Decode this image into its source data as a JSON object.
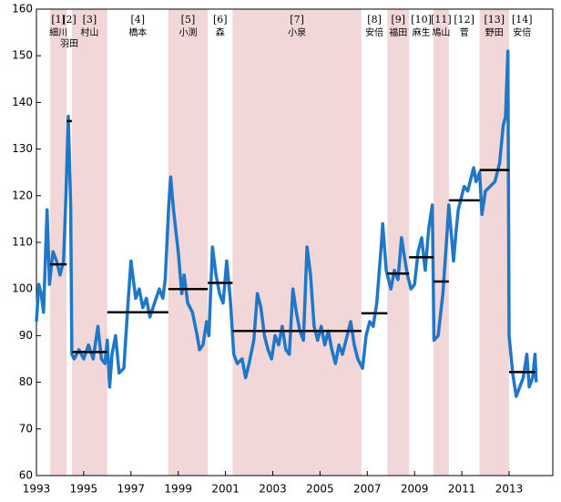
{
  "chart_data": {
    "type": "line",
    "xlim": [
      1993,
      2014.85
    ],
    "ylim": [
      60,
      160
    ],
    "xticks": [
      1993,
      1995,
      1997,
      1999,
      2001,
      2003,
      2005,
      2007,
      2009,
      2011,
      2013
    ],
    "yticks": [
      60,
      70,
      80,
      90,
      100,
      110,
      120,
      130,
      140,
      150,
      160
    ],
    "color": "#1f77c8",
    "shade_color": "#f2d7d9",
    "avg_color": "#000000",
    "periods": [
      {
        "label": "[1]",
        "name": "細川",
        "start": 1993.58,
        "end": 1994.28,
        "avg": 105.3,
        "shaded": true
      },
      {
        "label": "[2]",
        "name": "羽田",
        "start": 1994.28,
        "end": 1994.5,
        "avg": 136,
        "shaded": false
      },
      {
        "label": "[3]",
        "name": "村山",
        "start": 1994.5,
        "end": 1996.0,
        "avg": 86.5,
        "shaded": true
      },
      {
        "label": "[4]",
        "name": "橋本",
        "start": 1996.0,
        "end": 1998.58,
        "avg": 95,
        "shaded": false
      },
      {
        "label": "[5]",
        "name": "小渕",
        "start": 1998.58,
        "end": 2000.25,
        "avg": 100,
        "shaded": true
      },
      {
        "label": "[6]",
        "name": "森",
        "start": 2000.25,
        "end": 2001.3,
        "avg": 101.3,
        "shaded": false
      },
      {
        "label": "[7]",
        "name": "小泉",
        "start": 2001.3,
        "end": 2006.75,
        "avg": 91,
        "shaded": true
      },
      {
        "label": "[8]",
        "name": "安倍",
        "start": 2006.75,
        "end": 2007.85,
        "avg": 94.8,
        "shaded": false
      },
      {
        "label": "[9]",
        "name": "福田",
        "start": 2007.85,
        "end": 2008.77,
        "avg": 103.3,
        "shaded": true
      },
      {
        "label": "[10]",
        "name": "麻生",
        "start": 2008.77,
        "end": 2009.8,
        "avg": 106.8,
        "shaded": false
      },
      {
        "label": "[11]",
        "name": "鳩山",
        "start": 2009.8,
        "end": 2010.45,
        "avg": 101.6,
        "shaded": true
      },
      {
        "label": "[12]",
        "name": "菅",
        "start": 2010.45,
        "end": 2011.75,
        "avg": 119,
        "shaded": false
      },
      {
        "label": "[13]",
        "name": "野田",
        "start": 2011.75,
        "end": 2013.0,
        "avg": 125.5,
        "shaded": true
      },
      {
        "label": "[14]",
        "name": "安倍",
        "start": 2013.0,
        "end": 2014.1,
        "avg": 82.2,
        "shaded": false
      }
    ],
    "x": [
      1993.0,
      1993.1,
      1993.2,
      1993.3,
      1993.45,
      1993.55,
      1993.7,
      1993.85,
      1994.0,
      1994.15,
      1994.25,
      1994.35,
      1994.45,
      1994.5,
      1994.6,
      1994.8,
      1995.0,
      1995.2,
      1995.4,
      1995.6,
      1995.75,
      1995.9,
      1996.0,
      1996.1,
      1996.2,
      1996.35,
      1996.5,
      1996.7,
      1996.85,
      1997.0,
      1997.2,
      1997.35,
      1997.5,
      1997.65,
      1997.8,
      1998.0,
      1998.2,
      1998.35,
      1998.45,
      1998.6,
      1998.68,
      1998.8,
      1999.0,
      1999.15,
      1999.25,
      1999.4,
      1999.6,
      1999.8,
      1999.9,
      2000.05,
      2000.2,
      2000.3,
      2000.45,
      2000.6,
      2000.75,
      2000.9,
      2001.05,
      2001.2,
      2001.35,
      2001.5,
      2001.7,
      2001.85,
      2002.0,
      2002.2,
      2002.35,
      2002.5,
      2002.65,
      2002.8,
      2002.95,
      2003.1,
      2003.25,
      2003.4,
      2003.55,
      2003.7,
      2003.85,
      2004.0,
      2004.15,
      2004.3,
      2004.45,
      2004.6,
      2004.75,
      2004.9,
      2005.05,
      2005.2,
      2005.35,
      2005.5,
      2005.65,
      2005.8,
      2005.95,
      2006.15,
      2006.3,
      2006.45,
      2006.6,
      2006.8,
      2006.95,
      2007.1,
      2007.25,
      2007.4,
      2007.6,
      2007.65,
      2007.8,
      2007.9,
      2008.0,
      2008.15,
      2008.3,
      2008.45,
      2008.6,
      2008.7,
      2008.85,
      2009.0,
      2009.15,
      2009.3,
      2009.45,
      2009.6,
      2009.75,
      2009.82,
      2010.0,
      2010.2,
      2010.35,
      2010.45,
      2010.55,
      2010.65,
      2010.75,
      2010.85,
      2011.0,
      2011.1,
      2011.25,
      2011.4,
      2011.5,
      2011.6,
      2011.75,
      2011.85,
      2012.0,
      2012.2,
      2012.4,
      2012.6,
      2012.75,
      2012.85,
      2012.95,
      2013.0,
      2013.15,
      2013.3,
      2013.45,
      2013.6,
      2013.75,
      2013.85,
      2014.0,
      2014.1,
      2014.15
    ],
    "values": [
      93,
      101,
      99,
      95,
      117,
      101,
      108,
      106,
      103,
      106,
      120,
      137,
      118,
      86,
      85,
      87,
      85,
      88,
      85,
      92,
      85,
      84,
      89,
      79,
      86,
      90,
      82,
      83,
      95,
      106,
      98,
      100,
      96,
      98,
      94,
      97,
      100,
      98,
      102,
      118,
      124,
      117,
      108,
      99,
      103,
      97,
      95,
      90,
      87,
      88,
      93,
      90,
      109,
      103,
      99,
      97,
      106,
      98,
      86,
      84,
      85,
      81,
      84,
      89,
      99,
      96,
      90,
      87,
      85,
      90,
      88,
      92,
      87,
      86,
      100,
      95,
      91,
      89,
      109,
      103,
      92,
      89,
      92,
      88,
      91,
      87,
      84,
      88,
      86,
      90,
      93,
      88,
      85,
      83,
      90,
      93,
      92,
      97,
      110,
      114,
      104,
      102,
      100,
      104,
      102,
      111,
      106,
      103,
      100,
      101,
      108,
      111,
      104,
      113,
      118,
      89,
      90,
      99,
      110,
      118,
      112,
      106,
      112,
      117,
      120,
      122,
      121,
      124,
      126,
      123,
      125,
      116,
      121,
      122,
      123,
      127,
      135,
      137,
      151,
      90,
      82,
      77,
      79,
      81,
      86,
      79,
      81,
      86,
      80
    ]
  }
}
